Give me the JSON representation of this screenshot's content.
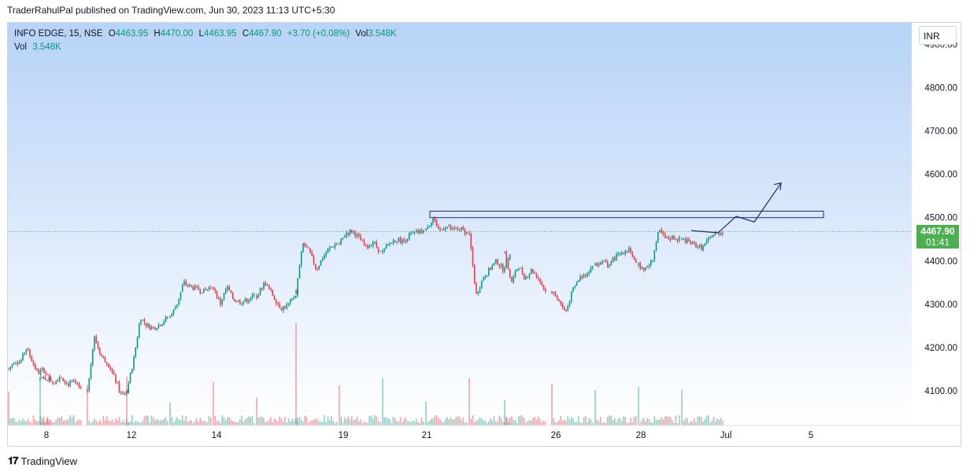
{
  "attribution": "TraderRahulPal published on TradingView.com, Jun 30, 2023 11:13 UTC+5:30",
  "legend": {
    "symbol": "INFO EDGE, 15, NSE",
    "open_label": "O",
    "open": "4463.95",
    "high_label": "H",
    "high": "4470.00",
    "low_label": "L",
    "low": "4463.95",
    "close_label": "C",
    "close": "4467.90",
    "change": "+3.70 (+0.08%)",
    "vol_label": "Vol",
    "vol": "3.548K",
    "vol_row_label": "Vol",
    "vol_row_value": "3.548K"
  },
  "currency": "INR",
  "price_tag": {
    "price": "4467.90",
    "countdown": "01:41"
  },
  "footer": {
    "logo_text": "TradingView",
    "logo_icon": "tradingview-logo-icon"
  },
  "colors": {
    "up": "#089981",
    "down": "#f23645",
    "drawing": "#1f2a7a",
    "bg_top": "#b7d3f7",
    "bg_bottom": "#ffffff",
    "last_price": "#4caf50"
  },
  "chart_data": {
    "type": "candlestick",
    "ylim": [
      4020,
      4950
    ],
    "y_ticks": [
      "4900.00",
      "4800.00",
      "4700.00",
      "4600.00",
      "4500.00",
      "4400.00",
      "4300.00",
      "4200.00",
      "4100.00"
    ],
    "x_ticks": [
      "8",
      "12",
      "14",
      "19",
      "21",
      "26",
      "28",
      "Jul",
      "5"
    ],
    "candles_per_session": 25,
    "sessions": [
      {
        "date": "Jun 7",
        "path": [
          4150,
          4170,
          4165,
          4200,
          4170,
          4140,
          4150,
          4125
        ]
      },
      {
        "date": "Jun 8",
        "path": [
          4125,
          4130,
          4120,
          4135,
          4115,
          4120,
          4100
        ]
      },
      {
        "date": "Jun 9",
        "path": [
          4100,
          4225,
          4180,
          4165,
          4130,
          4090,
          4100
        ]
      },
      {
        "date": "Jun 12",
        "path": [
          4100,
          4170,
          4270,
          4250,
          4245,
          4255,
          4270
        ]
      },
      {
        "date": "Jun 13",
        "path": [
          4270,
          4300,
          4350,
          4340,
          4335,
          4330,
          4340
        ]
      },
      {
        "date": "Jun 14",
        "path": [
          4340,
          4300,
          4340,
          4310,
          4305,
          4310,
          4320
        ]
      },
      {
        "date": "Jun 15",
        "path": [
          4320,
          4350,
          4320,
          4290,
          4300,
          4330
        ]
      },
      {
        "date": "Jun 16",
        "path": [
          4330,
          4440,
          4420,
          4380,
          4410,
          4430,
          4440
        ]
      },
      {
        "date": "Jun 19",
        "path": [
          4440,
          4465,
          4470,
          4450,
          4430,
          4445,
          4420
        ]
      },
      {
        "date": "Jun 20",
        "path": [
          4420,
          4440,
          4450,
          4445,
          4460,
          4465,
          4470
        ]
      },
      {
        "date": "Jun 21",
        "path": [
          4470,
          4500,
          4470,
          4480,
          4470,
          4475,
          4465
        ]
      },
      {
        "date": "Jun 22",
        "path": [
          4465,
          4320,
          4360,
          4380,
          4400,
          4380,
          4420
        ]
      },
      {
        "date": "Jun 23",
        "path": [
          4420,
          4350,
          4390,
          4360,
          4380,
          4360,
          4330
        ]
      },
      {
        "date": "Jun 26",
        "path": [
          4330,
          4310,
          4280,
          4330,
          4360,
          4370,
          4390
        ]
      },
      {
        "date": "Jun 27",
        "path": [
          4390,
          4400,
          4390,
          4410,
          4420,
          4430,
          4390
        ]
      },
      {
        "date": "Jun 28",
        "path": [
          4390,
          4380,
          4400,
          4470,
          4450,
          4455,
          4450
        ]
      },
      {
        "date": "Jun 29",
        "path": [
          4450,
          4440,
          4430,
          4460,
          4468
        ]
      }
    ],
    "last_price": 4467.9,
    "volume": {
      "label": "Vol",
      "last": "3.548K"
    },
    "drawings": {
      "resistance_zone": {
        "from": "Jun 21",
        "to": "Jul 5",
        "price_low": 4500,
        "price_high": 4515
      },
      "projection_path": [
        {
          "t": "Jun 29 end",
          "price": 4470
        },
        {
          "t": "Jun 30",
          "price": 4465
        },
        {
          "t": "Jul 3",
          "price": 4503
        },
        {
          "t": "Jul 3",
          "price": 4490
        },
        {
          "t": "Jul 4",
          "price": 4580
        }
      ]
    }
  }
}
